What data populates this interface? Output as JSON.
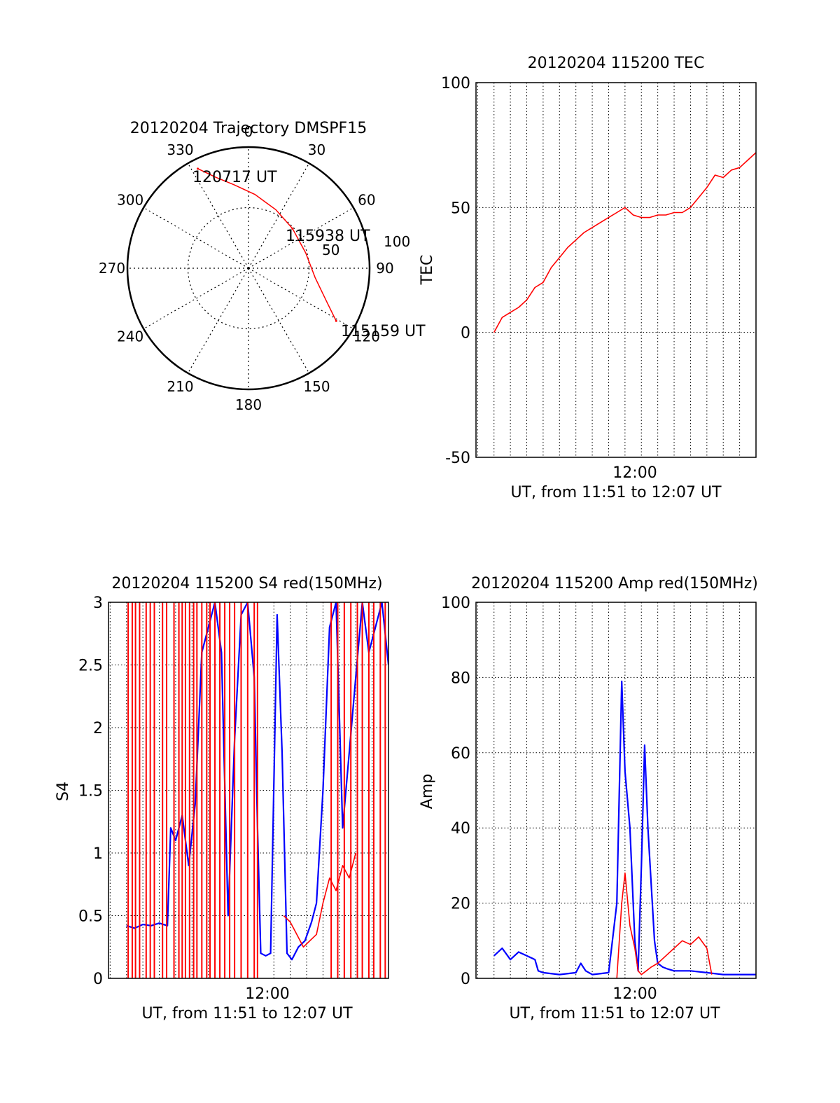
{
  "colors": {
    "red": "#ff0000",
    "blue": "#0000ff",
    "axis": "#000000"
  },
  "chart_data": [
    {
      "id": "trajectory",
      "type": "polar",
      "title": "20120204 Trajectory DMSPF15",
      "angle_labels": [
        "0",
        "30",
        "60",
        "90",
        "120",
        "150",
        "180",
        "210",
        "240",
        "270",
        "300",
        "330"
      ],
      "radius_labels": [
        "100",
        "50"
      ],
      "point_labels": [
        "120717 UT",
        "115938 UT",
        "115159 UT"
      ],
      "track": [
        {
          "az": 333,
          "el": 7
        },
        {
          "az": 340,
          "el": 18
        },
        {
          "az": 350,
          "el": 27
        },
        {
          "az": 5,
          "el": 35
        },
        {
          "az": 25,
          "el": 42
        },
        {
          "az": 48,
          "el": 46
        },
        {
          "az": 75,
          "el": 46
        },
        {
          "az": 98,
          "el": 40
        },
        {
          "az": 113,
          "el": 27
        },
        {
          "az": 121,
          "el": 14
        }
      ],
      "marked_points": [
        {
          "label": "120717 UT",
          "az": 333,
          "el": 7
        },
        {
          "label": "115938 UT",
          "az": 48,
          "el": 46
        },
        {
          "label": "115159 UT",
          "az": 121,
          "el": 14
        }
      ],
      "grid": true
    },
    {
      "id": "tec",
      "type": "line",
      "title": "20120204 115200 TEC",
      "ylabel": "TEC",
      "xlabel": "UT, from 11:51 to 12:07 UT",
      "x_unit": "minutes after 11:51",
      "xlim": [
        -1.1,
        16
      ],
      "ylim": [
        -50,
        100
      ],
      "yticks": [
        "-50",
        "0",
        "50",
        "100"
      ],
      "xtick_label": "12:00",
      "xtick_value": 9,
      "grid": true,
      "series": [
        {
          "color": "red",
          "x": [
            0,
            0.5,
            1,
            1.5,
            2,
            2.5,
            3,
            3.5,
            4,
            4.5,
            5,
            5.5,
            6,
            6.5,
            7,
            7.5,
            8,
            8.5,
            9,
            9.5,
            10,
            10.5,
            11,
            11.5,
            12,
            12.5,
            13,
            13.5,
            14,
            14.5,
            15,
            15.5,
            16
          ],
          "y": [
            0,
            6,
            8,
            10,
            13,
            18,
            20,
            26,
            30,
            34,
            37,
            40,
            42,
            44,
            46,
            48,
            50,
            47,
            46,
            46,
            47,
            47,
            48,
            48,
            50,
            54,
            58,
            63,
            62,
            65,
            66,
            69,
            72
          ]
        }
      ]
    },
    {
      "id": "s4",
      "type": "line",
      "title": "20120204 115200 S4 red(150MHz)",
      "ylabel": "S4",
      "xlabel": "UT, from 11:51 to 12:07 UT",
      "x_unit": "minutes after 11:51",
      "xlim": [
        -1.1,
        16
      ],
      "ylim": [
        0,
        3
      ],
      "yticks": [
        "0",
        "0.5",
        "1",
        "1.5",
        "2",
        "2.5",
        "3"
      ],
      "xtick_label": "12:00",
      "xtick_value": 9,
      "grid": true,
      "red_spikes_x": [
        0.1,
        0.35,
        0.55,
        0.8,
        1.2,
        1.45,
        1.7,
        2.2,
        2.45,
        2.9,
        3.2,
        3.4,
        3.6,
        3.85,
        4.1,
        4.3,
        4.6,
        4.9,
        5.1,
        5.4,
        5.7,
        6.0,
        6.3,
        6.6,
        7.0,
        7.4,
        7.8,
        8.0,
        12.5,
        12.9,
        13.3,
        13.7,
        14.1,
        14.4,
        14.8,
        15.1,
        15.5,
        15.8
      ],
      "series": [
        {
          "color": "blue",
          "x": [
            0,
            0.5,
            1,
            1.5,
            2,
            2.5,
            2.7,
            3,
            3.4,
            3.8,
            4.2,
            4.6,
            5.0,
            5.4,
            5.8,
            6.2,
            6.6,
            7.0,
            7.4,
            7.8,
            8.0,
            8.2,
            8.5,
            8.8,
            9.2,
            9.5,
            9.8,
            10.1,
            10.5,
            10.9,
            11.3,
            11.6,
            12.0,
            12.4,
            12.8,
            13.2,
            13.6,
            14.0,
            14.4,
            14.8,
            15.2,
            15.6,
            16
          ],
          "y": [
            0.42,
            0.4,
            0.43,
            0.42,
            0.44,
            0.42,
            1.2,
            1.1,
            1.3,
            0.9,
            1.4,
            2.6,
            2.8,
            3.0,
            2.6,
            0.5,
            1.9,
            2.9,
            3.0,
            2.4,
            1.2,
            0.2,
            0.18,
            0.2,
            2.9,
            1.8,
            0.2,
            0.15,
            0.25,
            0.3,
            0.45,
            0.6,
            1.5,
            2.8,
            3.0,
            1.2,
            1.8,
            2.4,
            3.0,
            2.6,
            2.8,
            3.0,
            2.5
          ]
        },
        {
          "color": "red",
          "x": [
            9.6,
            10.0,
            10.4,
            10.8,
            11.2,
            11.6,
            12.0,
            12.4,
            12.8,
            13.2,
            13.6,
            14.0
          ],
          "y": [
            0.5,
            0.45,
            0.35,
            0.25,
            0.3,
            0.35,
            0.6,
            0.8,
            0.7,
            0.9,
            0.8,
            1.0
          ]
        }
      ]
    },
    {
      "id": "amp",
      "type": "line",
      "title": "20120204 115200 Amp red(150MHz)",
      "ylabel": "Amp",
      "xlabel": "UT, from 11:51 to 12:07 UT",
      "x_unit": "minutes after 11:51",
      "xlim": [
        -1.1,
        16
      ],
      "ylim": [
        0,
        100
      ],
      "yticks": [
        "0",
        "20",
        "40",
        "60",
        "80",
        "100"
      ],
      "xtick_label": "12:00",
      "xtick_value": 9,
      "grid": true,
      "series": [
        {
          "color": "blue",
          "x": [
            0,
            0.5,
            1,
            1.5,
            2,
            2.5,
            2.7,
            3,
            4,
            5,
            5.3,
            5.6,
            6,
            7,
            7.5,
            7.8,
            8.0,
            8.3,
            8.6,
            8.8,
            9.0,
            9.2,
            9.4,
            9.6,
            9.8,
            10.0,
            10.3,
            10.6,
            11,
            12,
            13,
            14,
            15,
            16
          ],
          "y": [
            6,
            8,
            5,
            7,
            6,
            5,
            2,
            1.5,
            1,
            1.5,
            4,
            2,
            1,
            1.5,
            20,
            79,
            55,
            40,
            10,
            2,
            30,
            62,
            40,
            25,
            10,
            4,
            3,
            2.5,
            2,
            2,
            1.5,
            1,
            1,
            1
          ]
        },
        {
          "color": "red",
          "x": [
            7.5,
            7.8,
            8.0,
            8.3,
            8.6,
            8.8,
            9.0,
            9.3,
            9.6,
            10.0,
            10.5,
            11.0,
            11.5,
            12.0,
            12.5,
            13.0,
            13.3
          ],
          "y": [
            0,
            20,
            28,
            14,
            8,
            2,
            1,
            2,
            3,
            4,
            6,
            8,
            10,
            9,
            11,
            8,
            1
          ]
        }
      ]
    }
  ]
}
